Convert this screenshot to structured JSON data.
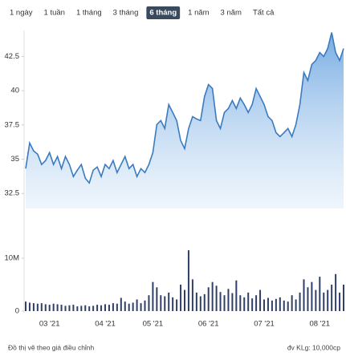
{
  "range_buttons": {
    "items": [
      "1 ngày",
      "1 tuần",
      "1 tháng",
      "3 tháng",
      "6 tháng",
      "1 năm",
      "3 năm",
      "Tất cả"
    ],
    "active": 4
  },
  "chart_data": [
    {
      "type": "area",
      "color": "#3a7bbf",
      "categories": [
        null,
        null,
        null,
        null,
        null,
        null,
        "03 '21",
        null,
        null,
        null,
        null,
        null,
        null,
        null,
        null,
        null,
        null,
        null,
        null,
        null,
        "04 '21",
        null,
        null,
        null,
        null,
        null,
        null,
        null,
        null,
        null,
        null,
        null,
        "05 '21",
        null,
        null,
        null,
        null,
        null,
        null,
        null,
        null,
        null,
        null,
        null,
        null,
        null,
        "06 '21",
        null,
        null,
        null,
        null,
        null,
        null,
        null,
        null,
        null,
        null,
        null,
        null,
        null,
        "07 '21",
        null,
        null,
        null,
        null,
        null,
        null,
        null,
        null,
        null,
        null,
        null,
        null,
        null,
        "08 '21",
        null,
        null,
        null,
        null,
        null,
        null
      ],
      "values": [
        34.31,
        36.18,
        35.6,
        35.37,
        34.61,
        34.9,
        35.48,
        34.61,
        35.19,
        34.31,
        35.19,
        34.61,
        33.73,
        34.2,
        34.61,
        33.61,
        33.26,
        34.2,
        34.43,
        33.73,
        34.61,
        34.31,
        34.9,
        34.02,
        34.61,
        35.19,
        34.31,
        34.61,
        33.73,
        34.31,
        34.02,
        34.61,
        35.48,
        37.53,
        37.82,
        37.24,
        38.99,
        38.41,
        37.82,
        36.36,
        35.77,
        37.24,
        38.11,
        37.94,
        37.82,
        39.58,
        40.45,
        40.16,
        37.82,
        37.24,
        38.41,
        38.7,
        39.28,
        38.7,
        39.46,
        38.99,
        38.41,
        38.99,
        40.16,
        39.58,
        38.99,
        38.11,
        37.82,
        36.94,
        36.65,
        36.94,
        37.24,
        36.65,
        37.53,
        38.99,
        41.33,
        40.75,
        41.92,
        42.21,
        42.79,
        42.5,
        43.08,
        44.25,
        42.79,
        42.21,
        43.08
      ],
      "ylim": [
        31.4,
        44.4
      ],
      "yticks": [
        32.5,
        35,
        37.5,
        40,
        42.5
      ],
      "grid": false
    },
    {
      "type": "bar",
      "color": "#2f3f66",
      "values": [
        1800000,
        1600000,
        1500000,
        1400000,
        1500000,
        1300000,
        1200000,
        1400000,
        1300000,
        1200000,
        1000000,
        1100000,
        1200000,
        900000,
        1000000,
        1100000,
        900000,
        1000000,
        1200000,
        1100000,
        1300000,
        1200000,
        1500000,
        1400000,
        2500000,
        1800000,
        1400000,
        1600000,
        2200000,
        1500000,
        2000000,
        3000000,
        5500000,
        4500000,
        3000000,
        2800000,
        3500000,
        2600000,
        2200000,
        5000000,
        4000000,
        11500000,
        6000000,
        3500000,
        2800000,
        3200000,
        4500000,
        5500000,
        4800000,
        3600000,
        3000000,
        4200000,
        3400000,
        5800000,
        3000000,
        2600000,
        3500000,
        2400000,
        3000000,
        4000000,
        2200000,
        2500000,
        2000000,
        2300000,
        2600000,
        2000000,
        1800000,
        3000000,
        2200000,
        3500000,
        6000000,
        4500000,
        5500000,
        4000000,
        6500000,
        3500000,
        4000000,
        5000000,
        7000000,
        3500000,
        5000000
      ],
      "ylim": [
        0,
        15000000
      ],
      "yticks": [
        0,
        {
          "value": 10000000,
          "label": "10M"
        }
      ],
      "grid": false
    }
  ],
  "footer": {
    "note": "Đồ thị vẽ theo giá điều chỉnh",
    "unit": "đv KLg: 10,000cp"
  }
}
